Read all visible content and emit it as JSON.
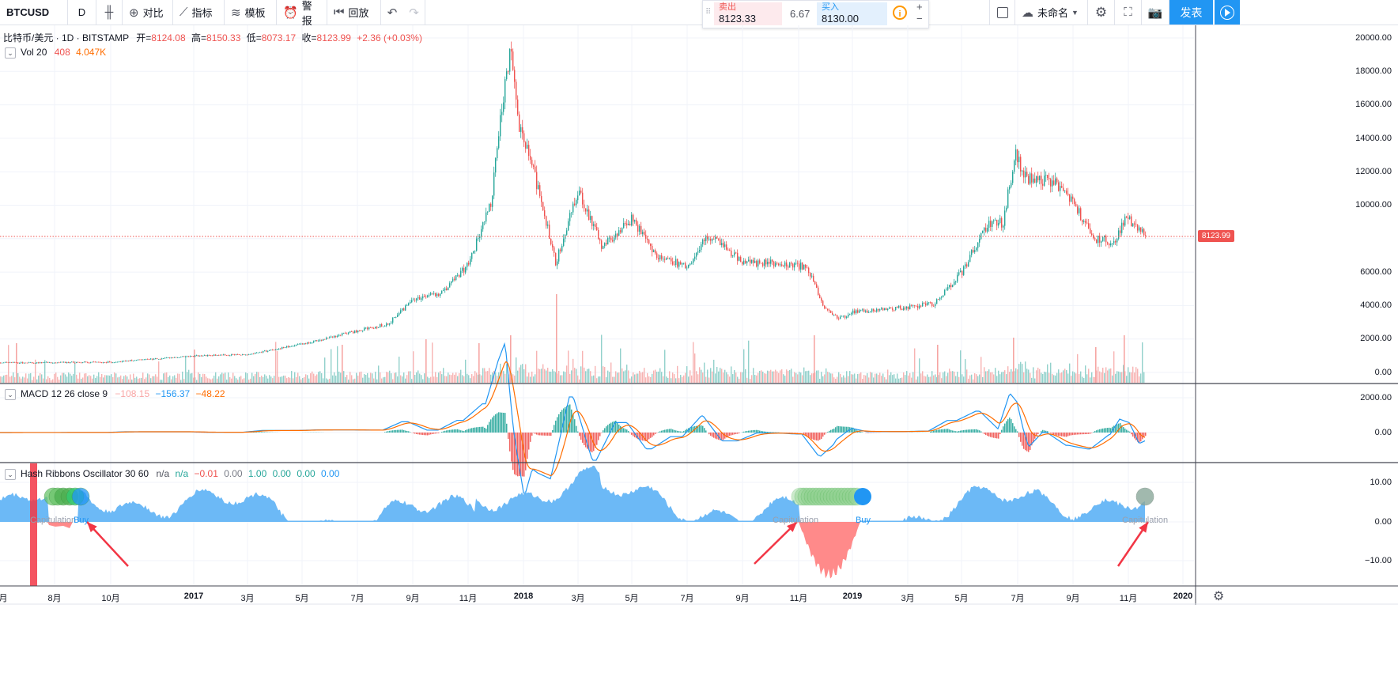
{
  "toolbar": {
    "symbol": "BTCUSD",
    "interval": "D",
    "compare_label": "对比",
    "indicators_label": "指标",
    "templates_label": "模板",
    "alerts_label": "警报",
    "replay_label": "回放",
    "layout_name": "未命名",
    "publish_label": "发表"
  },
  "trade_panel": {
    "sell_label": "卖出",
    "sell_price": "8123.33",
    "spread": "6.67",
    "buy_label": "买入",
    "buy_price": "8130.00"
  },
  "main_legend": {
    "title": "比特币/美元 · 1D · BITSTAMP",
    "open_label": "开=",
    "open": "8124.08",
    "high_label": "高=",
    "high": "8150.33",
    "low_label": "低=",
    "low": "8073.17",
    "close_label": "收=",
    "close": "8123.99",
    "change": "+2.36 (+0.03%)"
  },
  "volume_legend": {
    "name": "Vol 20",
    "v1": "408",
    "v2": "4.047K"
  },
  "macd_legend": {
    "name": "MACD 12 26 close 9",
    "v1": "−108.15",
    "v2": "−156.37",
    "v3": "−48.22"
  },
  "hash_legend": {
    "name": "Hash Ribbons Oscillator 30 60",
    "v1": "n/a",
    "v2": "n/a",
    "v3": "−0.01",
    "v4": "0.00",
    "v5": "1.00",
    "v6": "0.00",
    "v7": "0.00",
    "v8": "0.00"
  },
  "price_axis": [
    "20000.00",
    "18000.00",
    "16000.00",
    "14000.00",
    "12000.00",
    "10000.00",
    "6000.00",
    "4000.00",
    "2000.00",
    "0.00"
  ],
  "last_price_label": "8123.99",
  "macd_axis": [
    "2000.00",
    "0.00"
  ],
  "hash_axis": [
    "10.00",
    "0.00",
    "−10.00"
  ],
  "time_axis": [
    {
      "label": "8月",
      "bold": false
    },
    {
      "label": "10月",
      "bold": false
    },
    {
      "label": "2017",
      "bold": true
    },
    {
      "label": "3月",
      "bold": false
    },
    {
      "label": "5月",
      "bold": false
    },
    {
      "label": "7月",
      "bold": false
    },
    {
      "label": "9月",
      "bold": false
    },
    {
      "label": "11月",
      "bold": false
    },
    {
      "label": "2018",
      "bold": true
    },
    {
      "label": "3月",
      "bold": false
    },
    {
      "label": "5月",
      "bold": false
    },
    {
      "label": "7月",
      "bold": false
    },
    {
      "label": "9月",
      "bold": false
    },
    {
      "label": "11月",
      "bold": false
    },
    {
      "label": "2019",
      "bold": true
    },
    {
      "label": "3月",
      "bold": false
    },
    {
      "label": "5月",
      "bold": false
    },
    {
      "label": "7月",
      "bold": false
    },
    {
      "label": "9月",
      "bold": false
    },
    {
      "label": "11月",
      "bold": false
    },
    {
      "label": "2020",
      "bold": true
    }
  ],
  "time_axis_left_partial": "月",
  "annotations": {
    "capitulation": "Capitulation",
    "buy": "Buy"
  },
  "colors": {
    "up": "#26a69a",
    "down": "#ef5350",
    "hash_pos": "#64b5f6",
    "hash_neg": "#ff8a8a",
    "macd": "#2196f3",
    "signal": "#ff6d00",
    "accent": "#2196f3",
    "arrow": "#f23645"
  },
  "chart_data": {
    "type": "line",
    "title": "比特币/美元 · 1D · BITSTAMP",
    "x": [
      "2016-08",
      "2016-10",
      "2017-01",
      "2017-03",
      "2017-05",
      "2017-07",
      "2017-09",
      "2017-11",
      "2017-12-17",
      "2018-01",
      "2018-02-06",
      "2018-03",
      "2018-05",
      "2018-07",
      "2018-09",
      "2018-11",
      "2018-12-15",
      "2019-01",
      "2019-03",
      "2019-05",
      "2019-06-26",
      "2019-07",
      "2019-09",
      "2019-10-25",
      "2019-11-20"
    ],
    "series": [
      {
        "values": [
          580,
          610,
          990,
          1080,
          1700,
          2500,
          4400,
          6500,
          19600,
          14000,
          6500,
          9000,
          9200,
          6500,
          6600,
          6300,
          3200,
          3600,
          3900,
          6000,
          13000,
          10000,
          9500,
          8200,
          8124
        ]
      }
    ],
    "ylim": [
      0,
      20000
    ]
  }
}
